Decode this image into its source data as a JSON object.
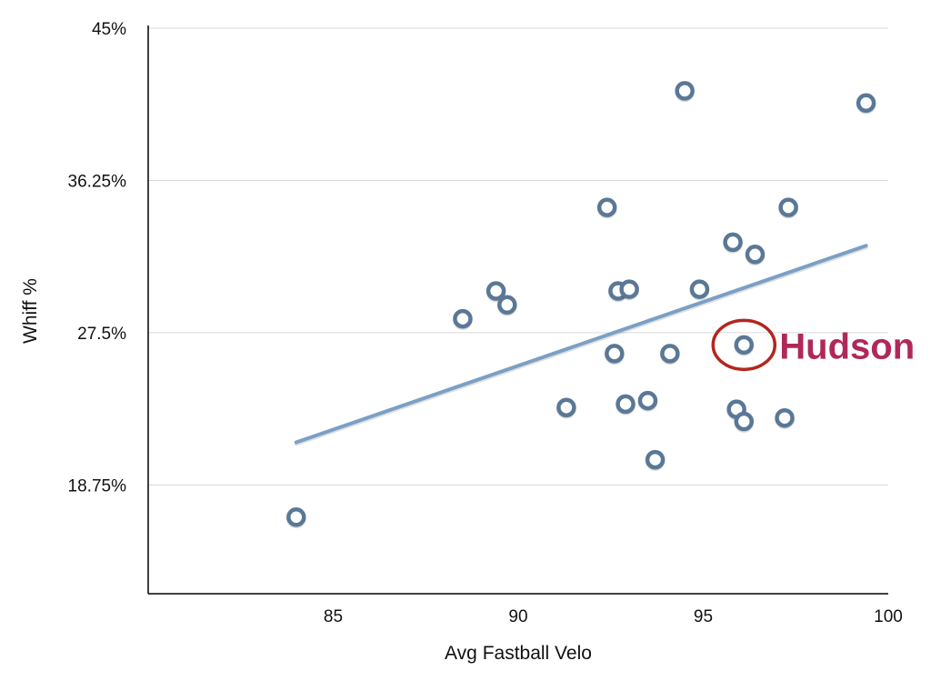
{
  "chart_data": {
    "type": "scatter",
    "xlabel": "Avg Fastball Velo",
    "ylabel": "Whiff %",
    "xlim": [
      80,
      100
    ],
    "ylim": [
      12.5,
      45
    ],
    "x_ticks": [
      {
        "value": 85,
        "label": "85"
      },
      {
        "value": 90,
        "label": "90"
      },
      {
        "value": 95,
        "label": "95"
      },
      {
        "value": 100,
        "label": "100"
      }
    ],
    "y_ticks": [
      {
        "value": 18.75,
        "label": "18.75%"
      },
      {
        "value": 27.5,
        "label": "27.5%"
      },
      {
        "value": 36.25,
        "label": "36.25%"
      },
      {
        "value": 45,
        "label": "45%"
      }
    ],
    "grid": "horizontal",
    "points": [
      {
        "x": 84.0,
        "y": 16.9
      },
      {
        "x": 88.5,
        "y": 28.3
      },
      {
        "x": 89.4,
        "y": 29.9
      },
      {
        "x": 89.7,
        "y": 29.1
      },
      {
        "x": 91.3,
        "y": 23.2
      },
      {
        "x": 92.4,
        "y": 34.7
      },
      {
        "x": 92.6,
        "y": 26.3
      },
      {
        "x": 92.7,
        "y": 29.9
      },
      {
        "x": 92.9,
        "y": 23.4
      },
      {
        "x": 93.0,
        "y": 30.0
      },
      {
        "x": 93.5,
        "y": 23.6
      },
      {
        "x": 93.7,
        "y": 20.2
      },
      {
        "x": 94.1,
        "y": 26.3
      },
      {
        "x": 94.5,
        "y": 41.4
      },
      {
        "x": 94.9,
        "y": 30.0
      },
      {
        "x": 95.8,
        "y": 32.7
      },
      {
        "x": 95.9,
        "y": 23.1
      },
      {
        "x": 96.1,
        "y": 26.8
      },
      {
        "x": 96.1,
        "y": 22.4
      },
      {
        "x": 96.4,
        "y": 32.0
      },
      {
        "x": 97.2,
        "y": 22.6
      },
      {
        "x": 97.3,
        "y": 34.7
      },
      {
        "x": 99.4,
        "y": 40.7
      }
    ],
    "trendline": {
      "x": [
        84.0,
        99.4
      ],
      "y": [
        21.2,
        32.5
      ]
    },
    "annotation": {
      "label": "Hudson",
      "x": 96.1,
      "y": 26.8
    },
    "colors": {
      "marker": "#5a7896",
      "trendline": "#7aa0c4",
      "annotation": "#b0285a",
      "annotation_circle": "#b3261e",
      "grid": "#d9d9d9",
      "axis": "#000000"
    }
  }
}
